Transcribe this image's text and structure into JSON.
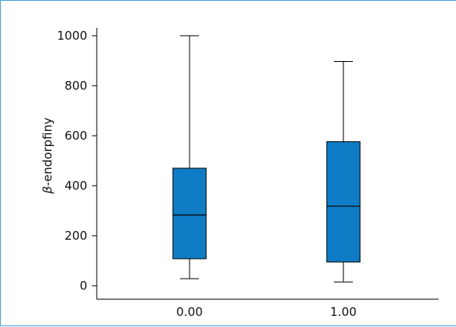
{
  "chart_data": {
    "type": "boxplot",
    "title": "",
    "xlabel": "",
    "ylabel_prefix": "β",
    "ylabel_suffix": "-endorpfiny",
    "ylim": [
      -50,
      1010
    ],
    "yticks": [
      0,
      200,
      400,
      600,
      800,
      1000
    ],
    "ytick_labels": [
      "0",
      "200",
      "400",
      "600",
      "800",
      "1000"
    ],
    "categories": [
      "0.00",
      "1.00"
    ],
    "boxes": [
      {
        "category": "0.00",
        "whisker_low": 28,
        "q1": 108,
        "median": 283,
        "q3": 470,
        "whisker_high": 1000
      },
      {
        "category": "1.00",
        "whisker_low": 15,
        "q1": 95,
        "median": 318,
        "q3": 576,
        "whisker_high": 897
      }
    ],
    "box_color": "#0f7cc5",
    "grid": false
  }
}
